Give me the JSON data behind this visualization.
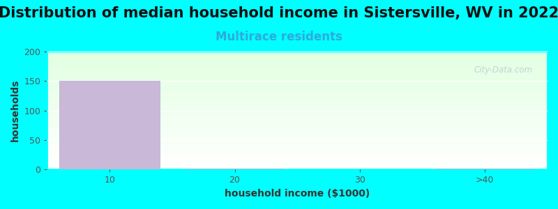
{
  "title": "Distribution of median household income in Sistersville, WV in 2022",
  "subtitle": "Multirace residents",
  "xlabel": "household income ($1000)",
  "ylabel": "households",
  "background_color": "#00FFFF",
  "bar_color": "#c9b8d8",
  "bar_edge_color": "#b8a8cc",
  "categories": [
    "10",
    "20",
    "30",
    ">40"
  ],
  "values": [
    150,
    2,
    0,
    2
  ],
  "ylim": [
    0,
    200
  ],
  "yticks": [
    0,
    50,
    100,
    150,
    200
  ],
  "title_fontsize": 15,
  "subtitle_fontsize": 12,
  "subtitle_color": "#2eaadc",
  "axis_label_fontsize": 10,
  "watermark_text": "City-Data.com",
  "watermark_color": "#b8ccd4",
  "grid_color": "#ffffff",
  "plot_bg_color_top": "#e8f5e8",
  "plot_bg_color_bottom": "#ffffff"
}
